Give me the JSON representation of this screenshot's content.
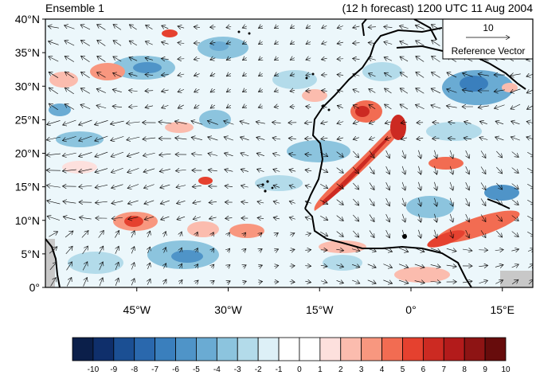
{
  "header": {
    "left_title": "Ensemble 1",
    "right_title": "(12 h forecast) 1200 UTC 11 Aug 2004"
  },
  "map": {
    "lat_labels": [
      "40°N",
      "35°N",
      "30°N",
      "25°N",
      "20°N",
      "15°N",
      "10°N",
      "5°N",
      "0°"
    ],
    "lon_labels": [
      "45°W",
      "30°W",
      "15°W",
      "0°",
      "15°E"
    ],
    "lon_range": [
      -60,
      20
    ],
    "lat_range": [
      0,
      40
    ],
    "reference_vector": {
      "magnitude": "10",
      "label": "Reference Vector"
    }
  },
  "colorbar": {
    "labels": [
      "-10",
      "-9",
      "-8",
      "-7",
      "-6",
      "-5",
      "-4",
      "-3",
      "-2",
      "-1",
      "0",
      "1",
      "2",
      "3",
      "4",
      "5",
      "6",
      "7",
      "8",
      "9",
      "10"
    ],
    "colors": [
      "#0b1f4a",
      "#0f2f6b",
      "#1b4f93",
      "#2a68ad",
      "#3a7fbd",
      "#4f94c8",
      "#6aabd3",
      "#8cc4de",
      "#b3dbea",
      "#ddf0f7",
      "#ffffff",
      "#ffffff",
      "#fde0dd",
      "#fbbcae",
      "#f8977f",
      "#f26c52",
      "#e5412f",
      "#cc2a22",
      "#b31b1b",
      "#8e1414",
      "#670c0c"
    ]
  }
}
